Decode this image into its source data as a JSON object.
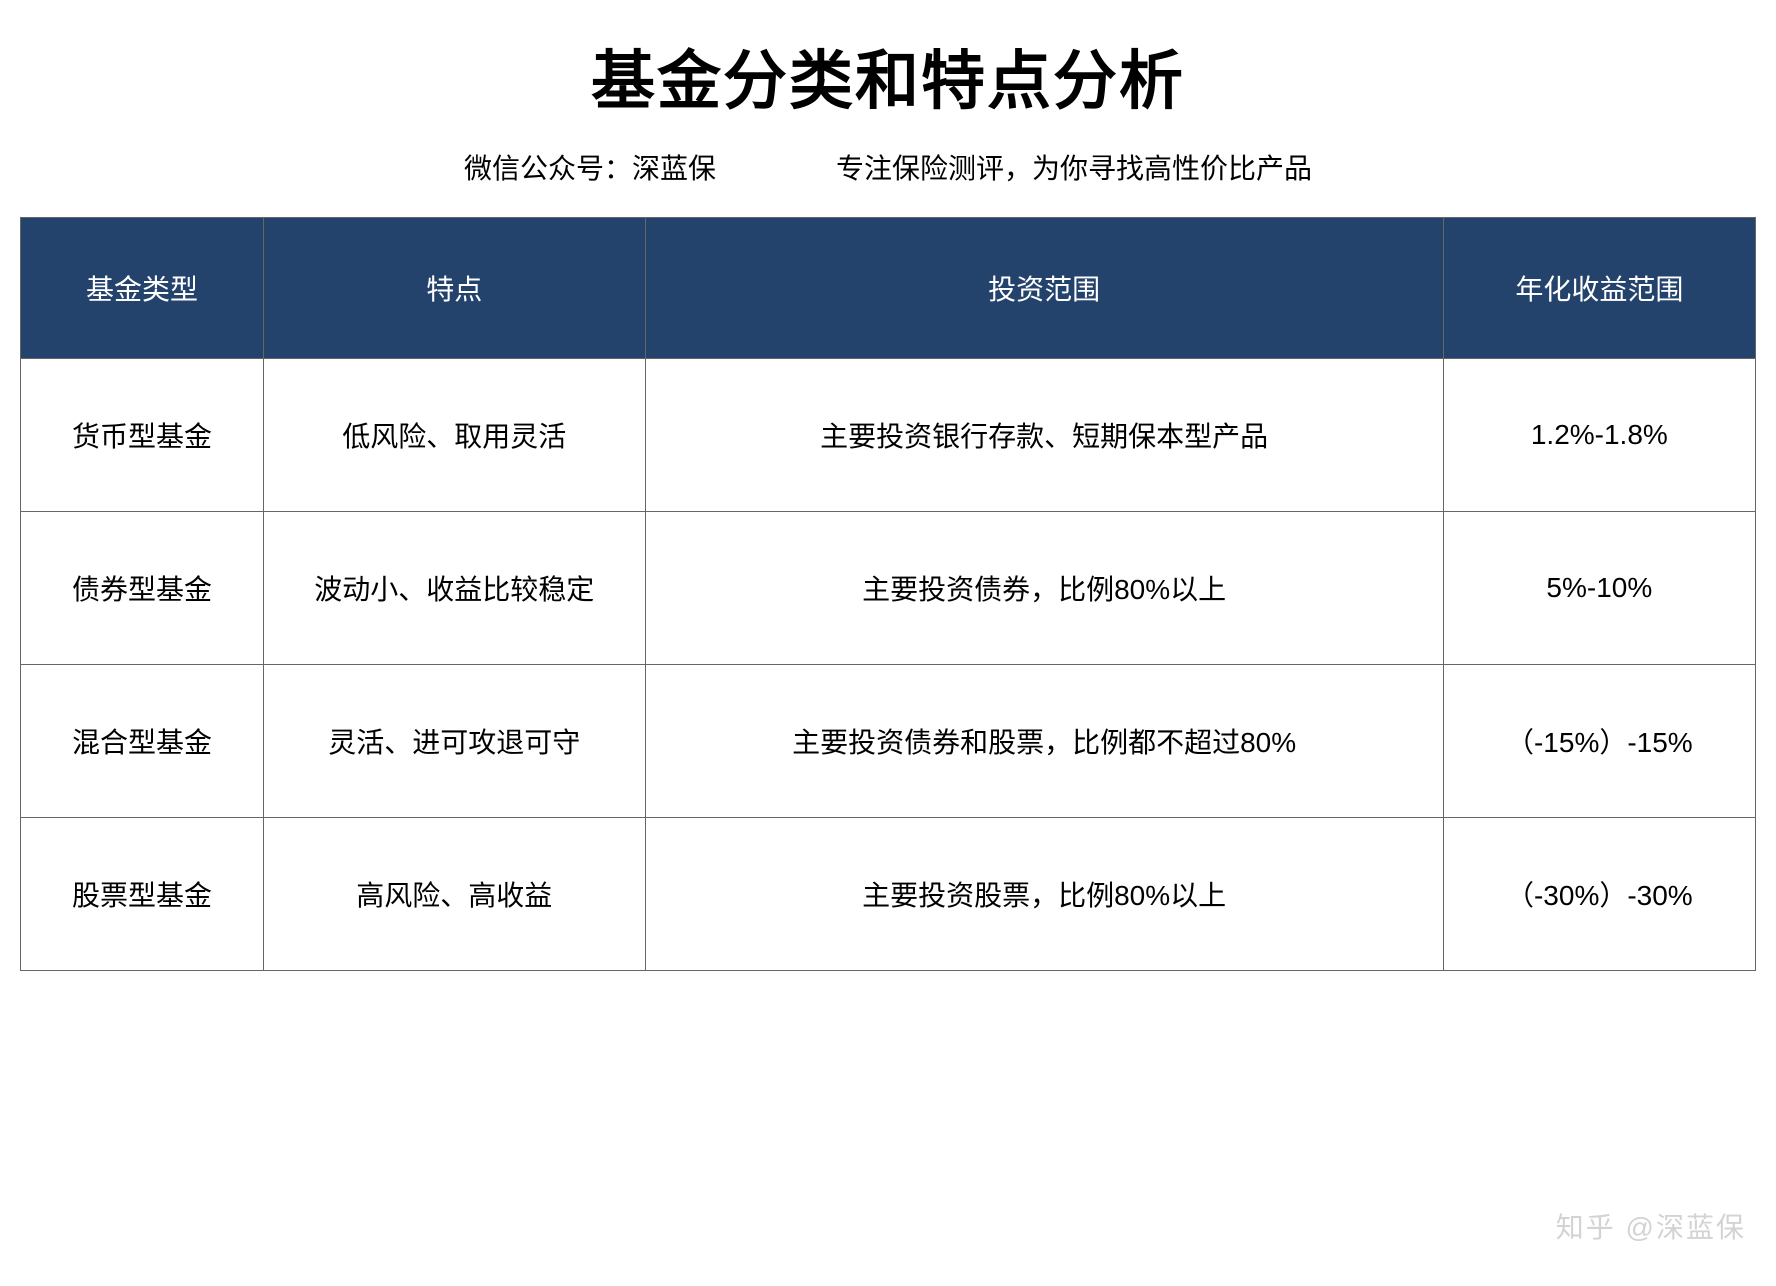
{
  "title": "基金分类和特点分析",
  "subtitle": {
    "left": "微信公众号：深蓝保",
    "right": "专注保险测评，为你寻找高性价比产品"
  },
  "table": {
    "columns": [
      "基金类型",
      "特点",
      "投资范围",
      "年化收益范围"
    ],
    "column_widths": [
      "14%",
      "22%",
      "46%",
      "18%"
    ],
    "header_bg": "#24436c",
    "header_color": "#ffffff",
    "cell_bg": "#ffffff",
    "cell_color": "#000000",
    "border_color": "#666666",
    "header_fontsize": 28,
    "cell_fontsize": 28,
    "rows": [
      {
        "type": "货币型基金",
        "feature": "低风险、取用灵活",
        "scope": "主要投资银行存款、短期保本型产品",
        "return": "1.2%-1.8%"
      },
      {
        "type": "债券型基金",
        "feature": "波动小、收益比较稳定",
        "scope": "主要投资债券，比例80%以上",
        "return": "5%-10%"
      },
      {
        "type": "混合型基金",
        "feature": "灵活、进可攻退可守",
        "scope": "主要投资债券和股票，比例都不超过80%",
        "return": "（-15%）-15%"
      },
      {
        "type": "股票型基金",
        "feature": "高风险、高收益",
        "scope": "主要投资股票，比例80%以上",
        "return": "（-30%）-30%"
      }
    ]
  },
  "watermark": {
    "corner": "知乎 @深蓝保",
    "color": "#b0b0b0"
  },
  "styling": {
    "title_fontsize": 64,
    "title_weight": 700,
    "title_color": "#000000",
    "subtitle_fontsize": 28,
    "background_color": "#ffffff"
  }
}
